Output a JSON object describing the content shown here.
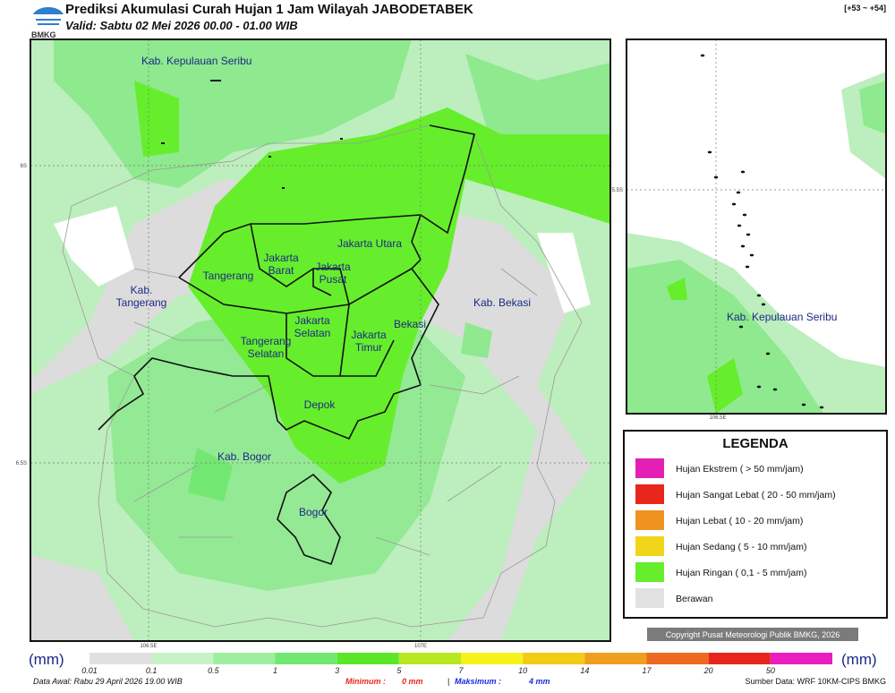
{
  "header": {
    "logo_text": "BMKG",
    "title": "Prediksi Akumulasi Curah Hujan 1 Jam Wilayah JABODETABEK",
    "valid": "Valid: Sabtu 02 Mei 2026 00.00 - 01.00 WIB",
    "range": "[+53 ~ +54]"
  },
  "map": {
    "ticks": {
      "lat_north": "6S",
      "lat_south": "6.5S",
      "lon_west": "106.5E",
      "lon_east": "107E"
    },
    "labels": [
      {
        "lines": [
          "Kab. Kepulauan Seribu"
        ]
      },
      {
        "lines": [
          "Jakarta Utara"
        ]
      },
      {
        "lines": [
          "Jakarta",
          "Barat"
        ]
      },
      {
        "lines": [
          "Jakarta",
          "Pusat"
        ]
      },
      {
        "lines": [
          "Tangerang"
        ]
      },
      {
        "lines": [
          "Kab.",
          "Tangerang"
        ]
      },
      {
        "lines": [
          "Kab. Bekasi"
        ]
      },
      {
        "lines": [
          "Bekasi"
        ]
      },
      {
        "lines": [
          "Jakarta",
          "Selatan"
        ]
      },
      {
        "lines": [
          "Jakarta",
          "Timur"
        ]
      },
      {
        "lines": [
          "Tangerang",
          "Selatan"
        ]
      },
      {
        "lines": [
          "Depok"
        ]
      },
      {
        "lines": [
          "Kab. Bogor"
        ]
      },
      {
        "lines": [
          "Bogor"
        ]
      }
    ]
  },
  "inset": {
    "ticks": {
      "lat": "5.5S",
      "lon": "106.5E"
    },
    "label": "Kab. Kepulauan Seribu"
  },
  "legend": {
    "title": "LEGENDA",
    "items": [
      {
        "label": "Hujan Ekstrem ( > 50 mm/jam)",
        "color": "#e41fb6"
      },
      {
        "label": "Hujan Sangat Lebat ( 20 - 50 mm/jam)",
        "color": "#e8261c"
      },
      {
        "label": "Hujan Lebat ( 10 - 20 mm/jam)",
        "color": "#ef9320"
      },
      {
        "label": "Hujan Sedang ( 5 - 10 mm/jam)",
        "color": "#f1d51b"
      },
      {
        "label": "Hujan Ringan ( 0,1 - 5 mm/jam)",
        "color": "#66ee2c"
      },
      {
        "label": "Berawan",
        "color": "#e2e2e2"
      }
    ]
  },
  "copyright": "Copyright Pusat Meteorologi Publik BMKG, 2026",
  "colorbar": {
    "unit": "(mm)",
    "segments": [
      {
        "label": "0.01",
        "color": "#e0e0e0"
      },
      {
        "label": "0.1",
        "color": "#c6f2c6"
      },
      {
        "label": "0.5",
        "color": "#9eee9e"
      },
      {
        "label": "1",
        "color": "#72e872"
      },
      {
        "label": "3",
        "color": "#5ce62a"
      },
      {
        "label": "5",
        "color": "#b8e820"
      },
      {
        "label": "7",
        "color": "#f6f21c"
      },
      {
        "label": "10",
        "color": "#f2cb16"
      },
      {
        "label": "14",
        "color": "#f09e20"
      },
      {
        "label": "17",
        "color": "#ec6b20"
      },
      {
        "label": "20",
        "color": "#e8261c"
      },
      {
        "label": "50",
        "color": "#e81ec0"
      }
    ]
  },
  "footer": {
    "data_awal": "Data Awal: Rabu 29 April 2026 19.00 WIB",
    "min_label": "Minimum :",
    "min_value": "0 mm",
    "separator": "|",
    "max_label": "Maksimum :",
    "max_value": "4 mm",
    "source": "Sumber Data: WRF 10KM-CIPS BMKG"
  }
}
